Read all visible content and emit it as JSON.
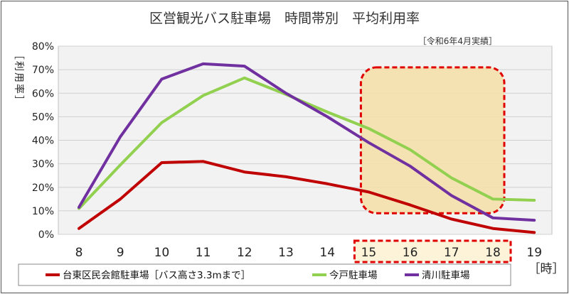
{
  "chart_data": {
    "type": "line",
    "title": "区営観光バス駐車場　時間帯別　平均利用率",
    "subtitle": "［令和6年4月実績］",
    "ylabel": "［利用率］",
    "xlabel": "［時］",
    "ylim": [
      0,
      80
    ],
    "grid": true,
    "legend_position": "bottom",
    "x": [
      8,
      9,
      10,
      11,
      12,
      13,
      14,
      15,
      16,
      17,
      18,
      19
    ],
    "y_ticks": [
      "0%",
      "10%",
      "20%",
      "30%",
      "40%",
      "50%",
      "60%",
      "70%",
      "80%"
    ],
    "highlight_range": [
      15,
      18
    ],
    "series": [
      {
        "name": "台東区民会館駐車場［バス高さ3.3mまで］",
        "color": "#c00000",
        "values": [
          2.5,
          15,
          30.5,
          31,
          26.5,
          24.5,
          21.5,
          18,
          12.5,
          6.5,
          2.5,
          0.8
        ]
      },
      {
        "name": "今戸駐車場",
        "color": "#92d050",
        "values": [
          11,
          29.5,
          47.5,
          59,
          66.5,
          59.5,
          52,
          45,
          36,
          24,
          15,
          14.5
        ]
      },
      {
        "name": "清川駐車場",
        "color": "#7030a0",
        "values": [
          11.5,
          41.5,
          66,
          72.5,
          71.5,
          60,
          50,
          39,
          29,
          16.5,
          7,
          6
        ]
      }
    ]
  },
  "colors": {
    "highlight_fill": "#f6dfa8",
    "highlight_border": "#e00000",
    "xtick_highlight_fill": "#fdf3d8"
  }
}
